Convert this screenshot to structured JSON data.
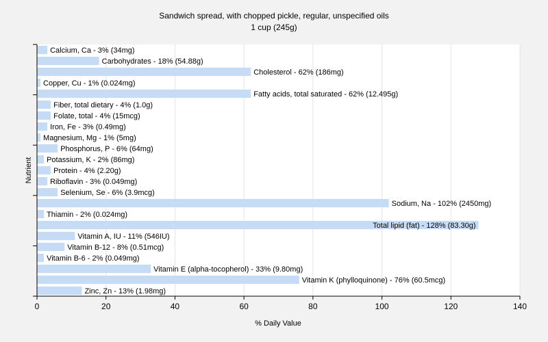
{
  "chart_data": {
    "type": "bar",
    "orientation": "horizontal",
    "title": "Sandwich spread, with chopped pickle, regular, unspecified oils",
    "subtitle": "1 cup (245g)",
    "xlabel": "% Daily Value",
    "ylabel": "Nutrient",
    "xlim": [
      0,
      140
    ],
    "xticks": [
      0,
      20,
      40,
      60,
      80,
      100,
      120,
      140
    ],
    "grid": true,
    "bar_color": "#c6dcf6",
    "categories": [
      "Calcium, Ca",
      "Carbohydrates",
      "Cholesterol",
      "Copper, Cu",
      "Fatty acids, total saturated",
      "Fiber, total dietary",
      "Folate, total",
      "Iron, Fe",
      "Magnesium, Mg",
      "Phosphorus, P",
      "Potassium, K",
      "Protein",
      "Riboflavin",
      "Selenium, Se",
      "Sodium, Na",
      "Thiamin",
      "Total lipid (fat)",
      "Vitamin A, IU",
      "Vitamin B-12",
      "Vitamin B-6",
      "Vitamin E (alpha-tocopherol)",
      "Vitamin K (phylloquinone)",
      "Zinc, Zn"
    ],
    "values": [
      3,
      18,
      62,
      1,
      62,
      4,
      4,
      3,
      1,
      6,
      2,
      4,
      3,
      6,
      102,
      2,
      128,
      11,
      8,
      2,
      33,
      76,
      13
    ],
    "labels": [
      "Calcium, Ca - 3% (34mg)",
      "Carbohydrates - 18% (54.88g)",
      "Cholesterol - 62% (186mg)",
      "Copper, Cu - 1% (0.024mg)",
      "Fatty acids, total saturated - 62% (12.495g)",
      "Fiber, total dietary - 4% (1.0g)",
      "Folate, total - 4% (15mcg)",
      "Iron, Fe - 3% (0.49mg)",
      "Magnesium, Mg - 1% (5mg)",
      "Phosphorus, P - 6% (64mg)",
      "Potassium, K - 2% (86mg)",
      "Protein - 4% (2.20g)",
      "Riboflavin - 3% (0.049mg)",
      "Selenium, Se - 6% (3.9mcg)",
      "Sodium, Na - 102% (2450mg)",
      "Thiamin - 2% (0.024mg)",
      "Total lipid (fat) - 128% (83.30g)",
      "Vitamin A, IU - 11% (546IU)",
      "Vitamin B-12 - 8% (0.51mcg)",
      "Vitamin B-6 - 2% (0.049mg)",
      "Vitamin E (alpha-tocopherol) - 33% (9.80mg)",
      "Vitamin K (phylloquinone) - 76% (60.5mcg)",
      "Zinc, Zn - 13% (1.98mg)"
    ]
  }
}
